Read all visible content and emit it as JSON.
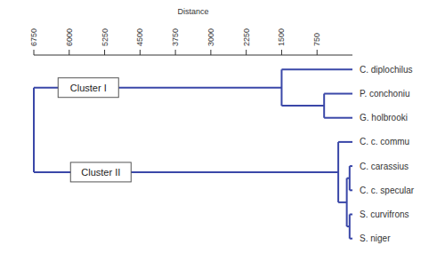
{
  "chart_data": {
    "type": "dendrogram",
    "x_label": "Distance",
    "xlim": [
      0,
      6750
    ],
    "xticks": [
      750,
      1500,
      2250,
      3000,
      3750,
      4500,
      5250,
      6000,
      6750
    ],
    "tick_labels": "x",
    "color": "#3a47a8",
    "leaves": [
      "C. diplochilus",
      "P. conchoniu",
      "G. holbrooki",
      "C. c. commu",
      "C. carassius",
      "C. c. specular",
      "S. curvifrons",
      "S. niger"
    ],
    "merges": [
      {
        "children": [
          1,
          2
        ],
        "height": 600
      },
      {
        "children": [
          0,
          8
        ],
        "height": 1500
      },
      {
        "children": [
          4,
          5
        ],
        "height": 60
      },
      {
        "children": [
          6,
          7
        ],
        "height": 60
      },
      {
        "children": [
          10,
          11
        ],
        "height": 120
      },
      {
        "children": [
          3,
          12
        ],
        "height": 300
      },
      {
        "children": [
          9,
          13
        ],
        "height": 6750
      }
    ],
    "clusters": [
      {
        "label": "Cluster I",
        "node": 9
      },
      {
        "label": "Cluster II",
        "node": 13
      }
    ]
  }
}
